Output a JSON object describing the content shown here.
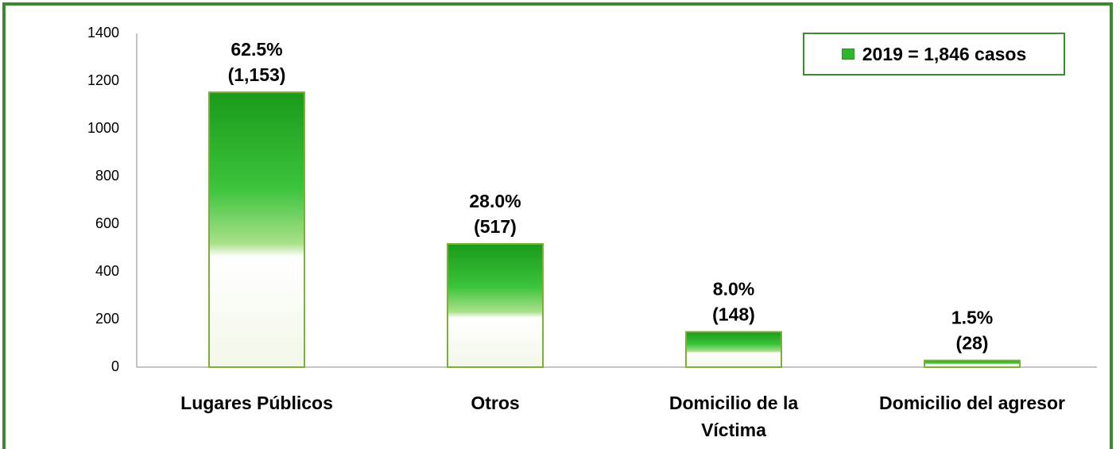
{
  "chart_data": {
    "type": "bar",
    "categories": [
      "Lugares Públicos",
      "Otros",
      "Domicilio de la Víctima",
      "Domicilio del agresor"
    ],
    "series": [
      {
        "name": "2019 = 1,846 casos",
        "color": "#2db52d",
        "values": [
          1153,
          517,
          148,
          28
        ],
        "value_labels": [
          [
            "62.5%",
            "(1,153)"
          ],
          [
            "28.0%",
            "(517)"
          ],
          [
            "8.0%",
            "(148)"
          ],
          [
            "1.5%",
            "(28)"
          ]
        ]
      }
    ],
    "ylim": [
      0,
      1400
    ],
    "yticks": [
      0,
      200,
      400,
      600,
      800,
      1000,
      1200,
      1400
    ],
    "grid": false,
    "legend": "top-right"
  }
}
